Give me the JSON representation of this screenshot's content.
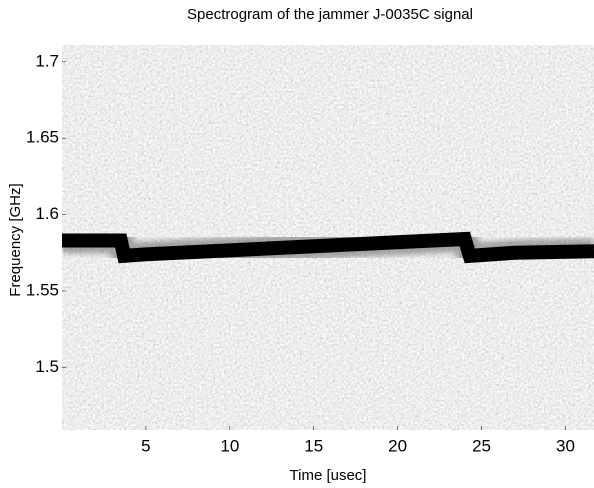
{
  "chart_data": {
    "type": "spectrogram",
    "title": "Spectrogram of the jammer J-0035C signal",
    "xlabel": "Time [usec]",
    "ylabel": "Frequency [GHz]",
    "x": [
      0,
      3.5,
      3.7,
      5,
      24,
      24.3,
      27,
      31.7
    ],
    "values": [
      1.583,
      1.583,
      1.573,
      1.574,
      1.584,
      1.573,
      1.575,
      1.576
    ],
    "color": "#000000",
    "xlim": [
      0,
      31.7
    ],
    "ylim": [
      1.459,
      1.711
    ],
    "xticks": [
      5,
      10,
      15,
      20,
      25,
      30
    ],
    "yticks": [
      1.5,
      1.55,
      1.6,
      1.65,
      1.7
    ]
  }
}
